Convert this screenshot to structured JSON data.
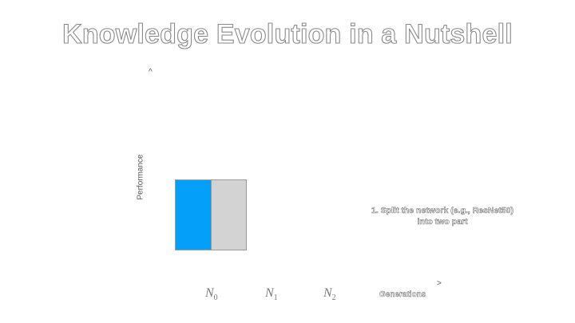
{
  "slide": {
    "title": "Knowledge Evolution in a Nutshell",
    "y_axis": {
      "arrow": "^",
      "label": "Performance"
    },
    "x_axis": {
      "arrow": ">",
      "label": "Generations"
    },
    "network_blocks": [
      {
        "name": "first-part",
        "color": "#049ff9"
      },
      {
        "name": "second-part",
        "color": "#d3d3d3"
      }
    ],
    "annotation": {
      "line1": "1. Split the network (e.g., ResNet50)",
      "line2": "into two part"
    },
    "generations": [
      {
        "symbol": "N",
        "index": "0"
      },
      {
        "symbol": "N",
        "index": "1"
      },
      {
        "symbol": "N",
        "index": "2"
      }
    ]
  }
}
